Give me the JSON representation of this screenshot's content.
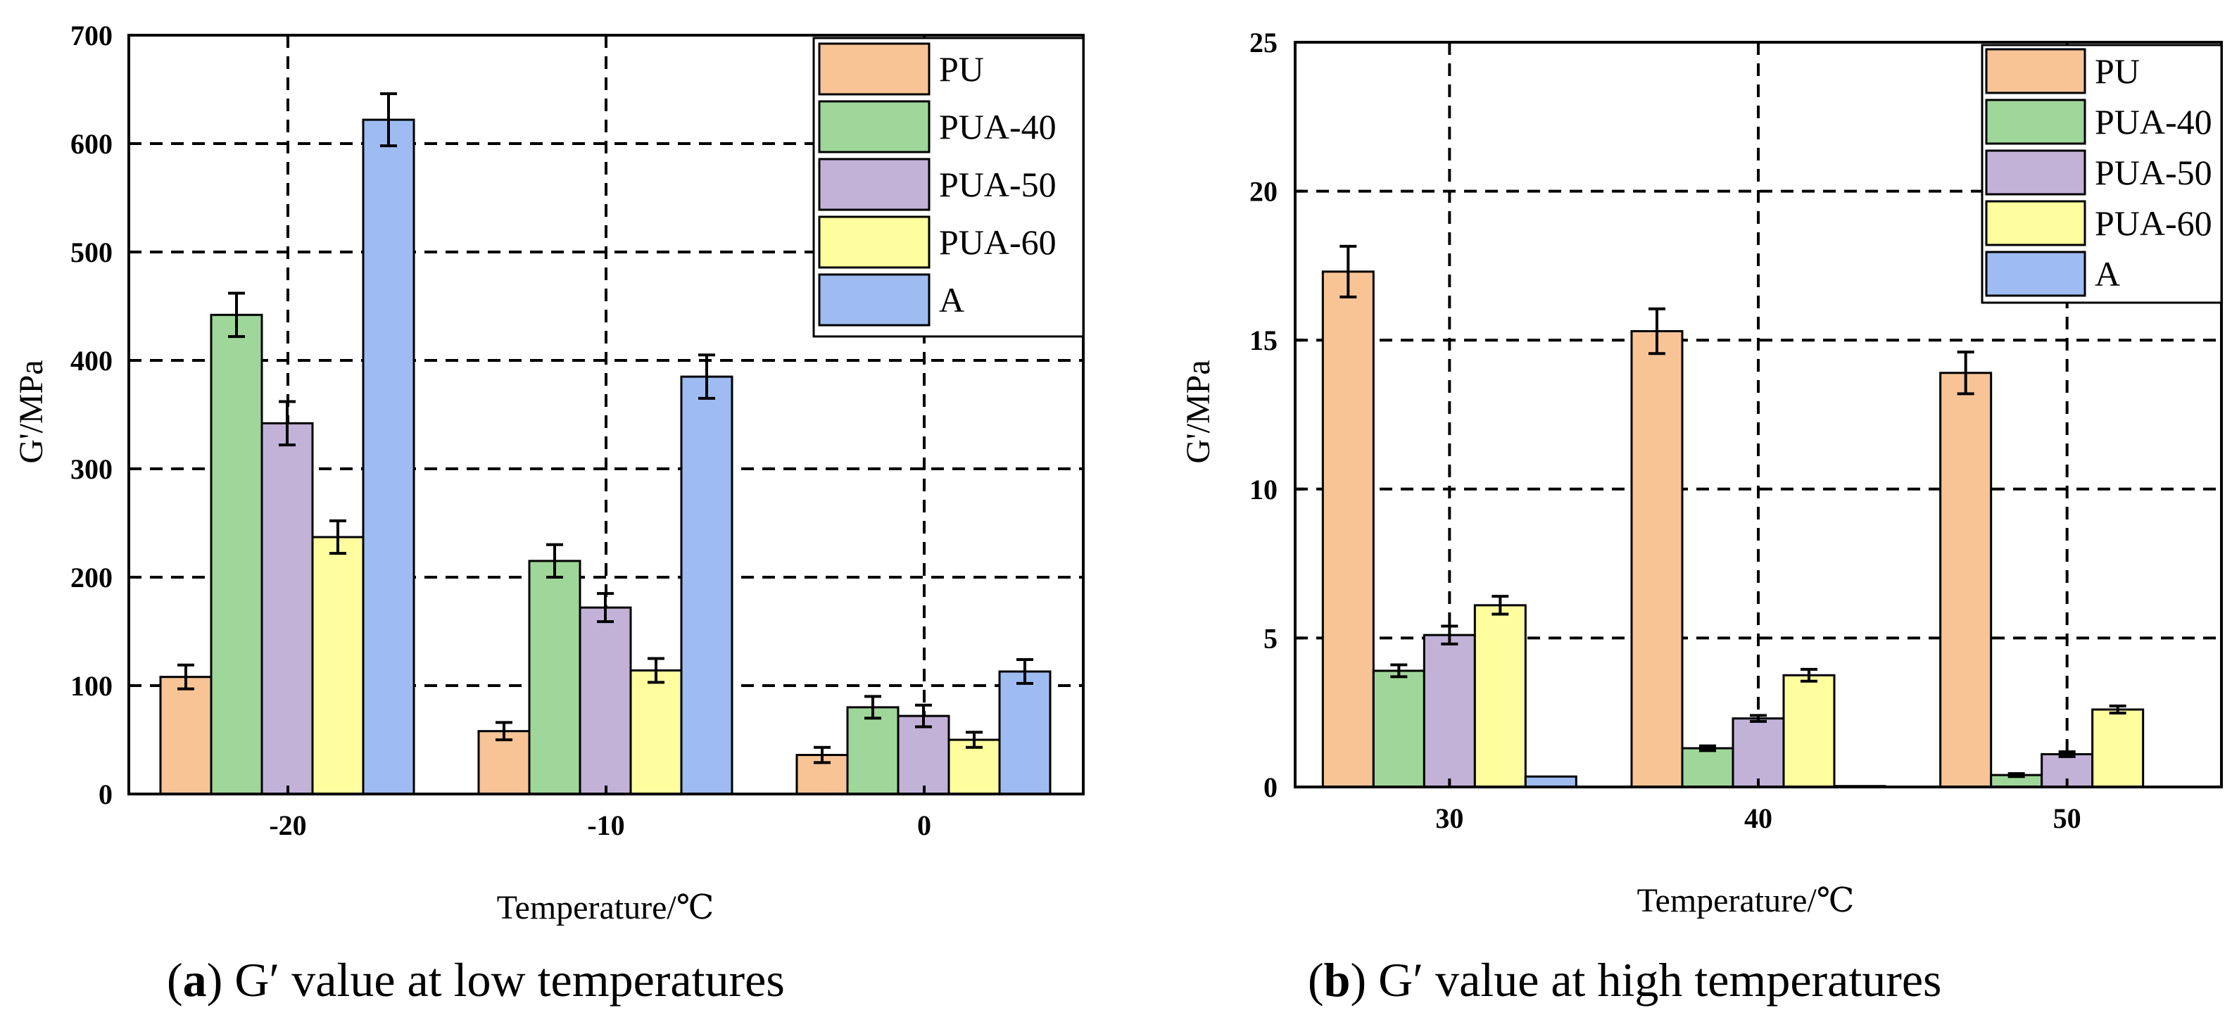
{
  "colors": {
    "PU": "#f8c496",
    "PUA-40": "#9fd79a",
    "PUA-50": "#c2b2d8",
    "PUA-60": "#fefe9e",
    "A": "#9ebcf2",
    "frame": "#000000",
    "grid": "#000000",
    "errorbar": "#000000"
  },
  "chart_data": [
    {
      "type": "bar",
      "panel": "a",
      "caption_letter": "a",
      "caption_text": "G′ value at low temperatures",
      "xlabel": "Temperature/℃",
      "ylabel": "G'/MPa",
      "ylim": [
        0,
        700
      ],
      "yticks": [
        0,
        100,
        200,
        300,
        400,
        500,
        600,
        700
      ],
      "categories": [
        "-20",
        "-10",
        "0"
      ],
      "grid": true,
      "legend_position": "top-right",
      "series": [
        {
          "name": "PU",
          "values": [
            108,
            58,
            36
          ],
          "errors": [
            11,
            8,
            7
          ]
        },
        {
          "name": "PUA-40",
          "values": [
            442,
            215,
            80
          ],
          "errors": [
            20,
            15,
            10
          ]
        },
        {
          "name": "PUA-50",
          "values": [
            342,
            172,
            72
          ],
          "errors": [
            20,
            13,
            10
          ]
        },
        {
          "name": "PUA-60",
          "values": [
            237,
            114,
            50
          ],
          "errors": [
            15,
            11,
            7
          ]
        },
        {
          "name": "A",
          "values": [
            622,
            385,
            113
          ],
          "errors": [
            24,
            20,
            11
          ]
        }
      ]
    },
    {
      "type": "bar",
      "panel": "b",
      "caption_letter": "b",
      "caption_text": "G′ value at high temperatures",
      "xlabel": "Temperature/℃",
      "ylabel": "G'/MPa",
      "ylim": [
        0,
        25
      ],
      "yticks": [
        0,
        5,
        10,
        15,
        20,
        25
      ],
      "categories": [
        "30",
        "40",
        "50"
      ],
      "grid": true,
      "legend_position": "top-right",
      "series": [
        {
          "name": "PU",
          "values": [
            17.3,
            15.3,
            13.9
          ],
          "errors": [
            0.85,
            0.75,
            0.7
          ]
        },
        {
          "name": "PUA-40",
          "values": [
            3.9,
            1.3,
            0.4
          ],
          "errors": [
            0.2,
            0.08,
            0.05
          ]
        },
        {
          "name": "PUA-50",
          "values": [
            5.1,
            2.3,
            1.1
          ],
          "errors": [
            0.3,
            0.1,
            0.08
          ]
        },
        {
          "name": "PUA-60",
          "values": [
            6.1,
            3.75,
            2.6
          ],
          "errors": [
            0.3,
            0.2,
            0.12
          ]
        },
        {
          "name": "A",
          "values": [
            0.35,
            0.03,
            0
          ],
          "errors": [
            0,
            0,
            0
          ]
        }
      ]
    }
  ]
}
